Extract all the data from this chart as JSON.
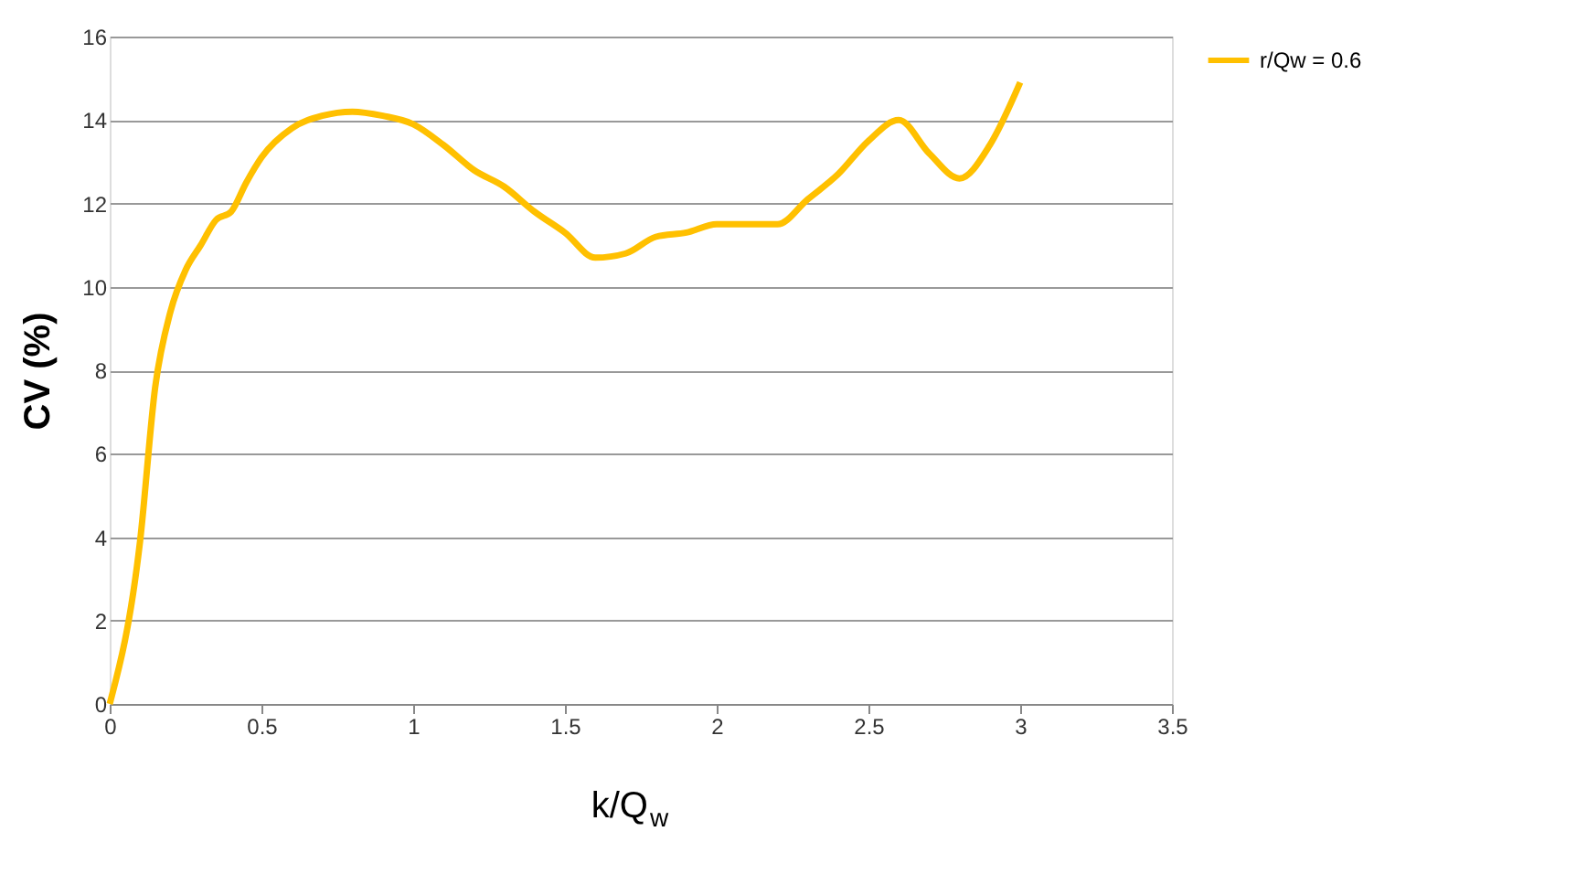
{
  "chart_data": {
    "type": "line",
    "xlabel": "k/Q$_{w}$",
    "ylabel": "CV (%)",
    "x": [
      0,
      0.1,
      0.15,
      0.2,
      0.25,
      0.3,
      0.35,
      0.4,
      0.45,
      0.5,
      0.6,
      0.7,
      0.8,
      0.9,
      1.0,
      1.1,
      1.2,
      1.3,
      1.4,
      1.5,
      1.6,
      1.7,
      1.8,
      1.9,
      2.0,
      2.1,
      2.2,
      2.3,
      2.4,
      2.5,
      2.6,
      2.7,
      2.8,
      2.9,
      3.0
    ],
    "series": [
      {
        "name": "r/Qw = 0.6",
        "color": "#ffc000",
        "values": [
          0,
          3.9,
          7.6,
          9.4,
          10.4,
          11.0,
          11.6,
          11.8,
          12.5,
          13.1,
          13.8,
          14.1,
          14.2,
          14.1,
          13.9,
          13.4,
          12.8,
          12.4,
          11.8,
          11.3,
          10.7,
          10.8,
          11.2,
          11.3,
          11.5,
          11.5,
          11.5,
          12.1,
          12.7,
          13.5,
          14.0,
          13.2,
          12.6,
          13.4,
          14.9
        ]
      }
    ],
    "xlim": [
      0,
      3.5
    ],
    "xticks": [
      0,
      0.5,
      1,
      1.5,
      2,
      2.5,
      3,
      3.5
    ],
    "ylim": [
      0,
      16
    ],
    "yticks": [
      0,
      2,
      4,
      6,
      8,
      10,
      12,
      14,
      16
    ],
    "grid": "y",
    "legend": "right",
    "marker": "none",
    "line_style": "solid"
  }
}
